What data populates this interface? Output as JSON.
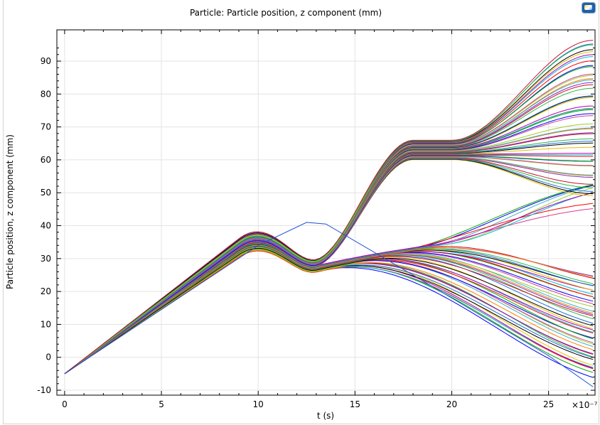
{
  "chart_data": {
    "type": "line",
    "title": "Particle: Particle position, z component (mm)",
    "xlabel": "t (s)",
    "ylabel": "Particle position, z component (mm)",
    "x_multiplier": "×10⁻⁷",
    "xlim": [
      -0.4,
      27.4
    ],
    "ylim": [
      -11.5,
      99.5
    ],
    "x_ticks": [
      0,
      5,
      10,
      15,
      20,
      25
    ],
    "y_ticks": [
      -10,
      0,
      10,
      20,
      30,
      40,
      50,
      60,
      70,
      80,
      90
    ],
    "grid": true,
    "legend": "none",
    "series_count": 100,
    "start_point": [
      0,
      -5
    ],
    "end_time": 27.3,
    "final_z_range": [
      -9,
      96
    ],
    "palette": [
      "#0000ff",
      "#00aa00",
      "#ff0000",
      "#00bcd4",
      "#b000b0",
      "#e6c000",
      "#000000",
      "#1f6fd6",
      "#2fb84a",
      "#c8102e",
      "#7b2fbf",
      "#ff7f00",
      "#3cb0c8",
      "#9acd32",
      "#d43f8d"
    ],
    "outlier_low_path": [
      [
        0,
        -5
      ],
      [
        5,
        14.5
      ],
      [
        10,
        34
      ],
      [
        12.5,
        41
      ],
      [
        13.5,
        40.5
      ],
      [
        18,
        25
      ],
      [
        22,
        11
      ],
      [
        25,
        0.5
      ],
      [
        27.3,
        -9
      ]
    ]
  },
  "logo": {
    "icon": "comsol-logo-icon"
  }
}
